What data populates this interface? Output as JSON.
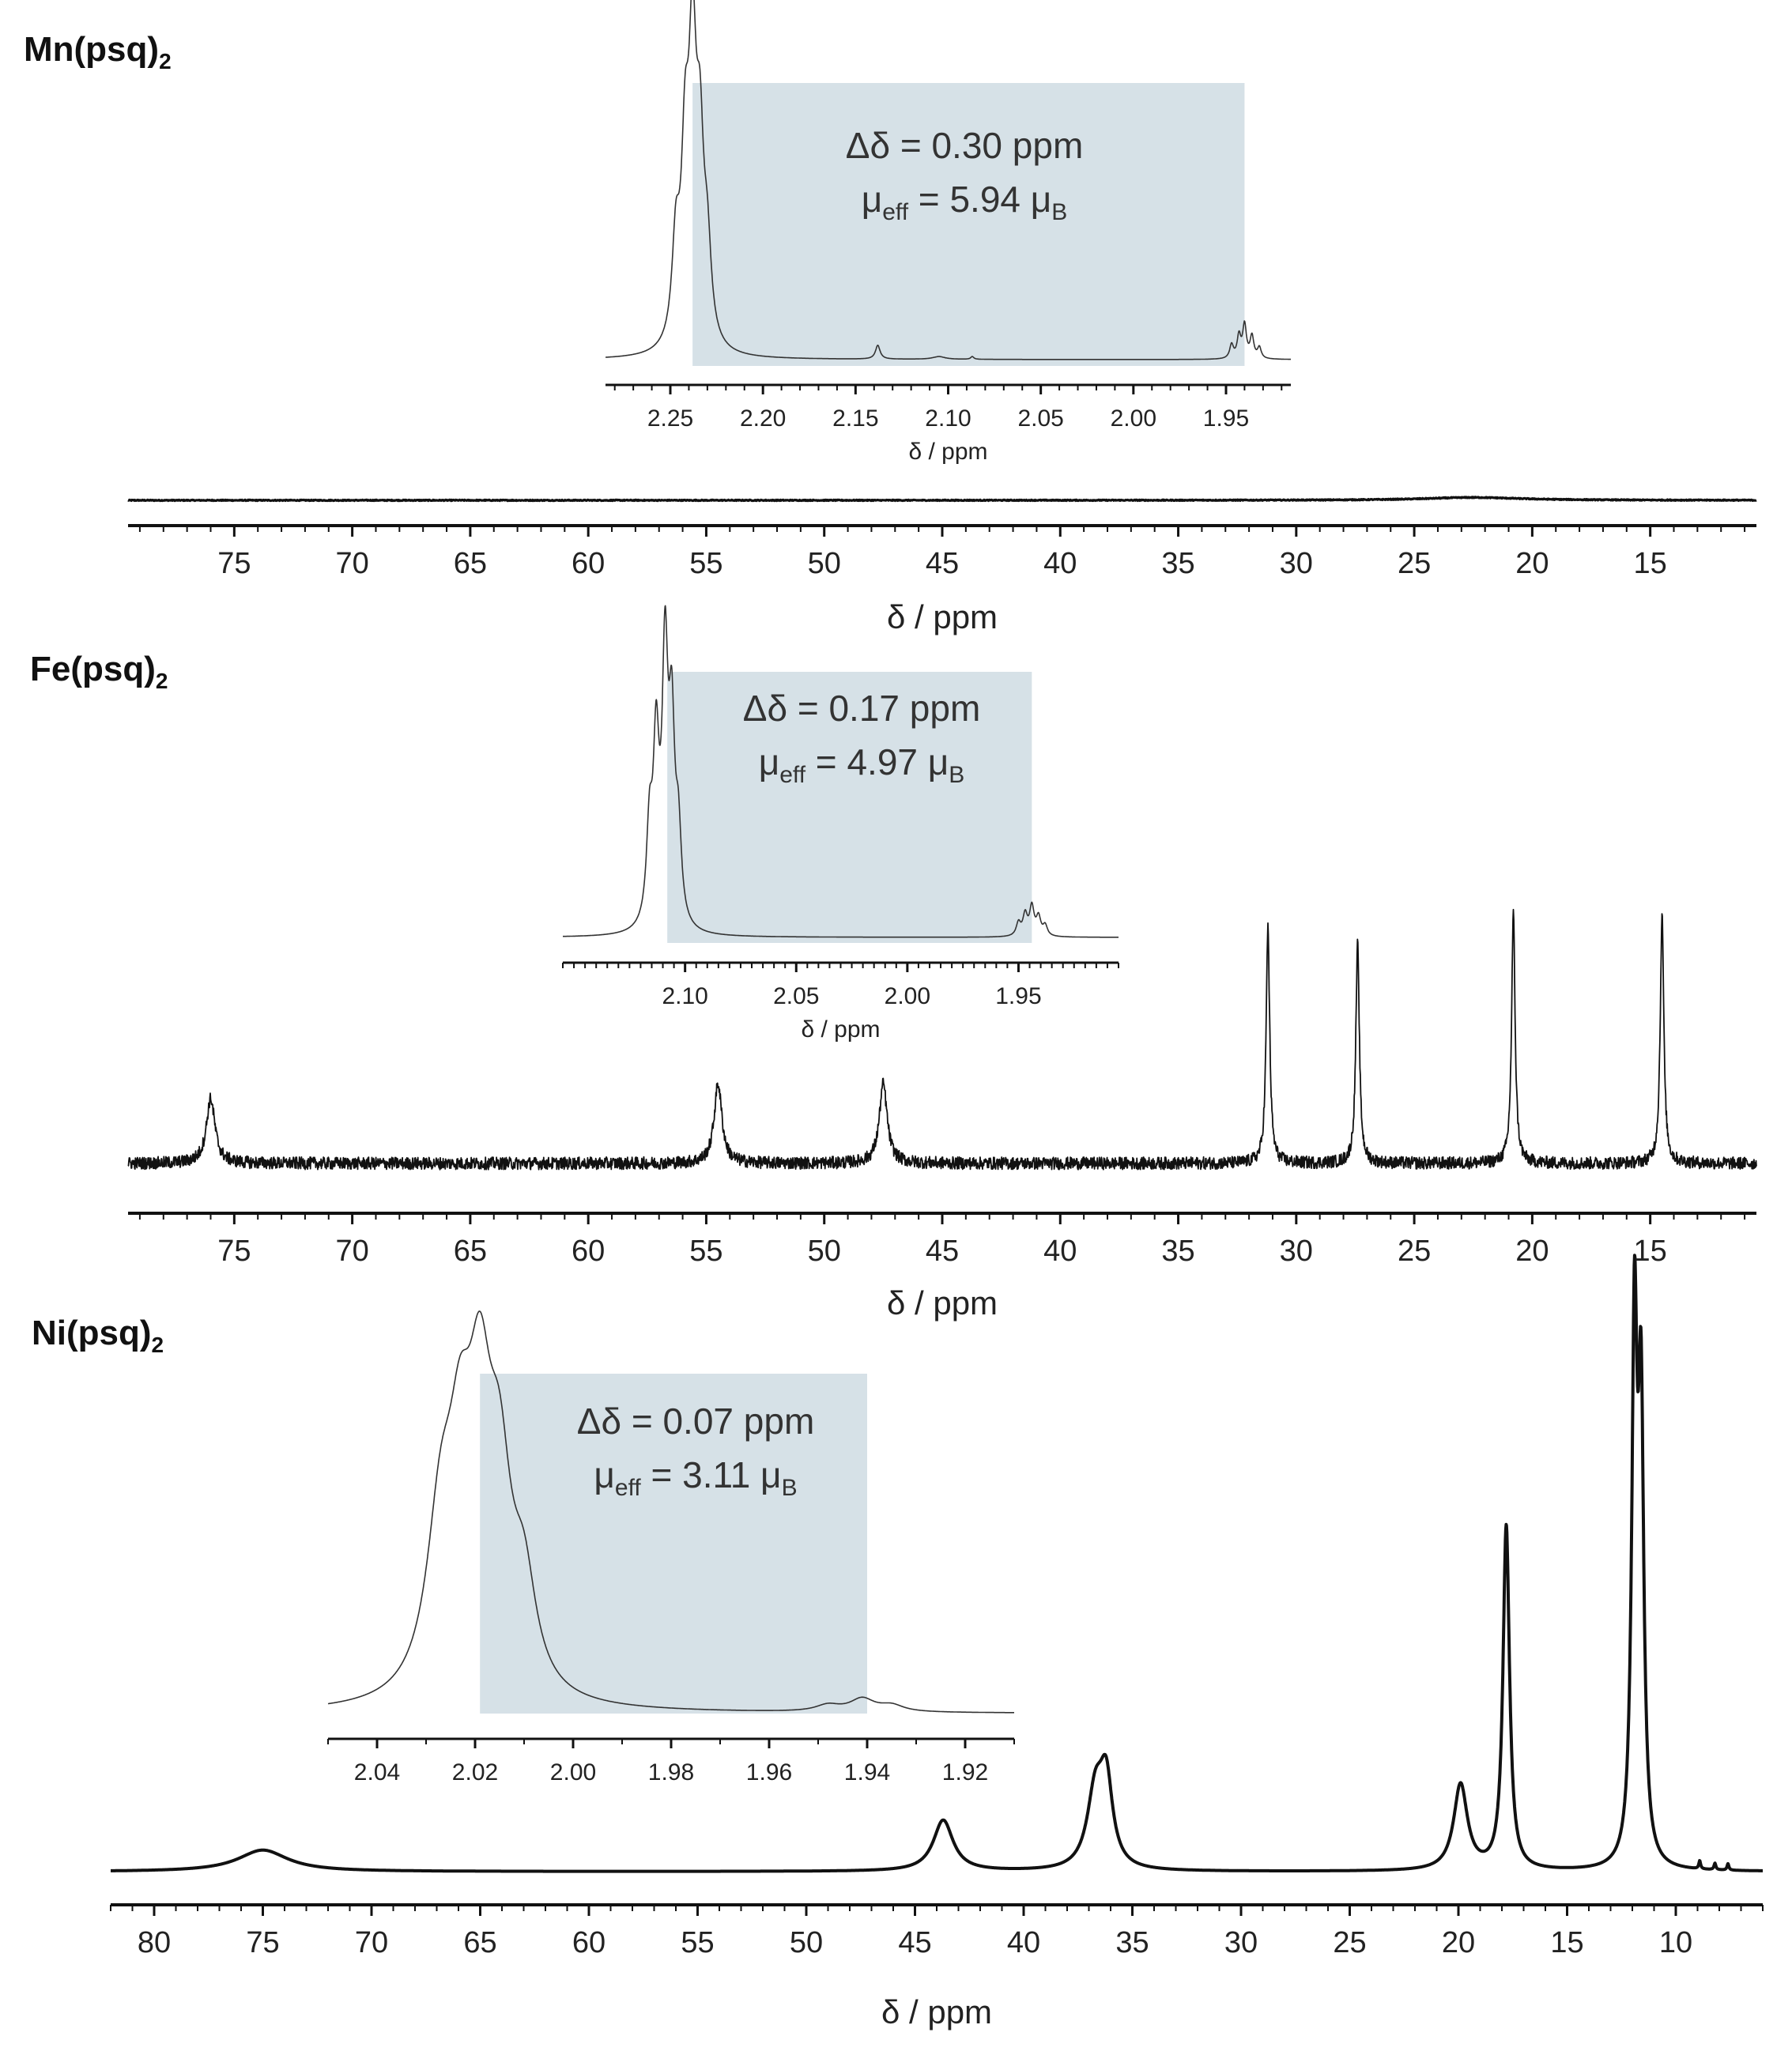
{
  "panels": [
    {
      "label_main": "Mn(psq)",
      "label_sub": "2",
      "delta_line": "Δδ = 0.30 ppm",
      "mu_prefix": "μ",
      "mu_sub": "eff",
      "mu_value": " = 5.94 μ",
      "mu_unit_sub": "B"
    },
    {
      "label_main": "Fe(psq)",
      "label_sub": "2",
      "delta_line": "Δδ = 0.17 ppm",
      "mu_prefix": "μ",
      "mu_sub": "eff",
      "mu_value": " = 4.97 μ",
      "mu_unit_sub": "B"
    },
    {
      "label_main": "Ni(psq)",
      "label_sub": "2",
      "delta_line": "Δδ = 0.07 ppm",
      "mu_prefix": "μ",
      "mu_sub": "eff",
      "mu_value": " = 3.11 μ",
      "mu_unit_sub": "B"
    }
  ],
  "colors": {
    "trace": "#111111",
    "inset_trace": "#333333",
    "highlight": "#d6e1e7",
    "axis": "#111111"
  },
  "chart_data": [
    {
      "type": "line",
      "name": "Mn(psq)2 main spectrum",
      "xlabel": "δ / ppm",
      "xlim": [
        79.5,
        10.5
      ],
      "xticks": [
        75,
        70,
        65,
        60,
        55,
        50,
        45,
        40,
        35,
        30,
        25,
        20,
        15
      ],
      "xtick_labels": [
        "75",
        "70",
        "65",
        "60",
        "55",
        "50",
        "45",
        "40",
        "35",
        "30",
        "25",
        "20",
        "15"
      ],
      "peaks": [
        {
          "x": 22.5,
          "height": 0.06,
          "width": 2.5
        }
      ],
      "noise": 0.01
    },
    {
      "type": "line",
      "name": "Mn(psq)2 inset",
      "xlabel": "δ / ppm",
      "xlim": [
        2.285,
        1.915
      ],
      "xticks": [
        2.25,
        2.2,
        2.15,
        2.1,
        2.05,
        2.0,
        1.95
      ],
      "xtick_labels": [
        "2.25",
        "2.20",
        "2.15",
        "2.10",
        "2.05",
        "2.00",
        "1.95"
      ],
      "highlight_range": [
        2.238,
        1.94
      ],
      "peaks": [
        {
          "x": 2.247,
          "height": 0.35,
          "width": 0.0025
        },
        {
          "x": 2.242,
          "height": 0.62,
          "width": 0.0025
        },
        {
          "x": 2.238,
          "height": 0.98,
          "width": 0.0025
        },
        {
          "x": 2.234,
          "height": 0.62,
          "width": 0.0025
        },
        {
          "x": 2.23,
          "height": 0.3,
          "width": 0.0025
        },
        {
          "x": 2.138,
          "height": 0.05,
          "width": 0.0015
        },
        {
          "x": 2.105,
          "height": 0.01,
          "width": 0.004
        },
        {
          "x": 2.087,
          "height": 0.01,
          "width": 0.001
        },
        {
          "x": 1.947,
          "height": 0.05,
          "width": 0.0012
        },
        {
          "x": 1.943,
          "height": 0.08,
          "width": 0.0012
        },
        {
          "x": 1.94,
          "height": 0.12,
          "width": 0.0012
        },
        {
          "x": 1.936,
          "height": 0.08,
          "width": 0.0012
        },
        {
          "x": 1.932,
          "height": 0.04,
          "width": 0.0012
        }
      ]
    },
    {
      "type": "line",
      "name": "Fe(psq)2 main spectrum",
      "xlabel": "δ / ppm",
      "xlim": [
        79.5,
        10.5
      ],
      "xticks": [
        75,
        70,
        65,
        60,
        55,
        50,
        45,
        40,
        35,
        30,
        25,
        20,
        15
      ],
      "xtick_labels": [
        "75",
        "70",
        "65",
        "60",
        "55",
        "50",
        "45",
        "40",
        "35",
        "30",
        "25",
        "20",
        "15"
      ],
      "peaks": [
        {
          "x": 76.0,
          "height": 0.26,
          "width": 0.22
        },
        {
          "x": 54.5,
          "height": 0.32,
          "width": 0.2
        },
        {
          "x": 47.5,
          "height": 0.32,
          "width": 0.2
        },
        {
          "x": 31.2,
          "height": 0.95,
          "width": 0.09
        },
        {
          "x": 27.4,
          "height": 0.88,
          "width": 0.09
        },
        {
          "x": 20.8,
          "height": 1.0,
          "width": 0.09
        },
        {
          "x": 14.5,
          "height": 1.0,
          "width": 0.09
        }
      ],
      "noise": 0.025
    },
    {
      "type": "line",
      "name": "Fe(psq)2 inset",
      "xlabel": "δ / ppm",
      "xlim": [
        2.155,
        1.905
      ],
      "xticks": [
        2.1,
        2.05,
        2.0,
        1.95
      ],
      "xtick_labels": [
        "2.10",
        "2.05",
        "2.00",
        "1.95"
      ],
      "highlight_range": [
        2.108,
        1.944
      ],
      "peaks": [
        {
          "x": 2.116,
          "height": 0.35,
          "width": 0.0016
        },
        {
          "x": 2.113,
          "height": 0.65,
          "width": 0.0016
        },
        {
          "x": 2.109,
          "height": 0.98,
          "width": 0.0016
        },
        {
          "x": 2.106,
          "height": 0.7,
          "width": 0.0016
        },
        {
          "x": 2.103,
          "height": 0.32,
          "width": 0.0016
        },
        {
          "x": 1.95,
          "height": 0.05,
          "width": 0.0012
        },
        {
          "x": 1.947,
          "height": 0.08,
          "width": 0.0012
        },
        {
          "x": 1.944,
          "height": 0.11,
          "width": 0.0012
        },
        {
          "x": 1.941,
          "height": 0.07,
          "width": 0.0012
        },
        {
          "x": 1.938,
          "height": 0.04,
          "width": 0.0012
        }
      ]
    },
    {
      "type": "line",
      "name": "Ni(psq)2 main spectrum",
      "xlabel": "δ / ppm",
      "xlim": [
        82.0,
        6.0
      ],
      "xticks": [
        80,
        75,
        70,
        65,
        60,
        55,
        50,
        45,
        40,
        35,
        30,
        25,
        20,
        15,
        10
      ],
      "xtick_labels": [
        "80",
        "75",
        "70",
        "65",
        "60",
        "55",
        "50",
        "45",
        "40",
        "35",
        "30",
        "25",
        "20",
        "15",
        "10"
      ],
      "peaks": [
        {
          "x": 75.0,
          "height": 0.04,
          "width": 1.4
        },
        {
          "x": 43.7,
          "height": 0.095,
          "width": 0.55
        },
        {
          "x": 36.7,
          "height": 0.14,
          "width": 0.45
        },
        {
          "x": 36.2,
          "height": 0.15,
          "width": 0.35
        },
        {
          "x": 19.9,
          "height": 0.16,
          "width": 0.38
        },
        {
          "x": 17.8,
          "height": 0.64,
          "width": 0.18
        },
        {
          "x": 11.9,
          "height": 0.98,
          "width": 0.15
        },
        {
          "x": 11.6,
          "height": 0.81,
          "width": 0.15
        },
        {
          "x": 8.9,
          "height": 0.015,
          "width": 0.05
        },
        {
          "x": 8.2,
          "height": 0.012,
          "width": 0.05
        },
        {
          "x": 7.6,
          "height": 0.012,
          "width": 0.05
        }
      ],
      "noise": 0.0
    },
    {
      "type": "line",
      "name": "Ni(psq)2 inset",
      "xlabel": "",
      "xlim": [
        2.05,
        1.91
      ],
      "xticks": [
        2.04,
        2.02,
        2.0,
        1.98,
        1.96,
        1.94,
        1.92
      ],
      "xtick_labels": [
        "2.04",
        "2.02",
        "2.00",
        "1.98",
        "1.96",
        "1.94",
        "1.92"
      ],
      "highlight_range": [
        2.019,
        1.94
      ],
      "peaks": [
        {
          "x": 2.027,
          "height": 0.5,
          "width": 0.0035
        },
        {
          "x": 2.023,
          "height": 0.55,
          "width": 0.003
        },
        {
          "x": 2.019,
          "height": 0.75,
          "width": 0.003
        },
        {
          "x": 2.015,
          "height": 0.55,
          "width": 0.003
        },
        {
          "x": 2.01,
          "height": 0.3,
          "width": 0.003
        },
        {
          "x": 1.948,
          "height": 0.02,
          "width": 0.003
        },
        {
          "x": 1.941,
          "height": 0.04,
          "width": 0.003
        },
        {
          "x": 1.935,
          "height": 0.02,
          "width": 0.003
        }
      ]
    }
  ]
}
